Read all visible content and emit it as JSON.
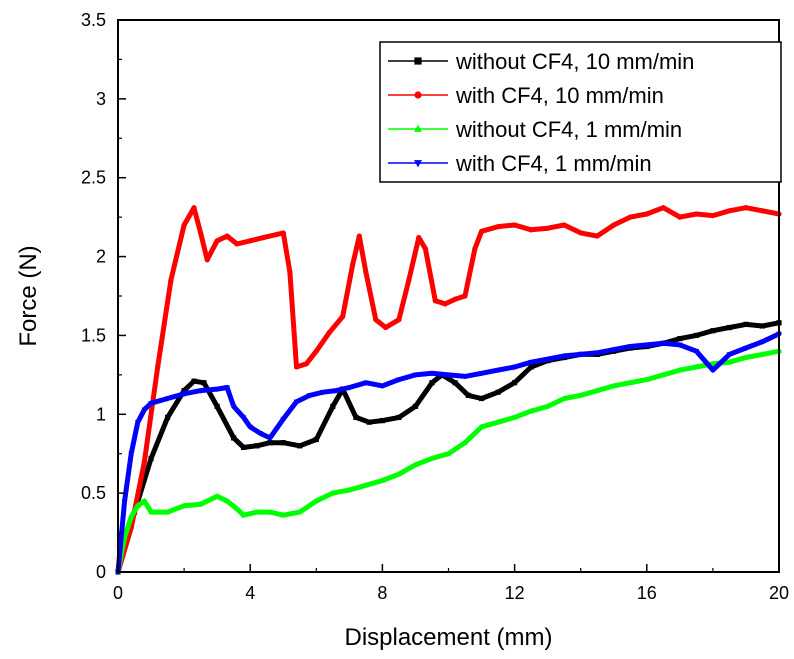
{
  "chart_data": {
    "type": "line",
    "xlabel": "Displacement (mm)",
    "ylabel": "Force (N)",
    "xlim": [
      0,
      20
    ],
    "ylim": [
      0,
      3.5
    ],
    "x_ticks": [
      0,
      4,
      8,
      12,
      16,
      20
    ],
    "x_tick_labels": [
      "0",
      "4",
      "8",
      "12",
      "16",
      "20"
    ],
    "y_ticks": [
      0,
      0.5,
      1,
      1.5,
      2,
      2.5,
      3,
      3.5
    ],
    "y_tick_labels": [
      "0",
      "0.5",
      "1",
      "1.5",
      "2",
      "2.5",
      "3",
      "3.5"
    ],
    "grid": false,
    "legend_position": "top-right",
    "series": [
      {
        "name": "without CF4, 10 mm/min",
        "color": "#000000",
        "marker": "square",
        "x": [
          0,
          0.5,
          1,
          1.5,
          2,
          2.3,
          2.6,
          3,
          3.5,
          3.8,
          4.2,
          4.6,
          5,
          5.5,
          6,
          6.5,
          6.8,
          7.2,
          7.6,
          8,
          8.5,
          9,
          9.5,
          9.8,
          10.2,
          10.6,
          11,
          11.5,
          12,
          12.5,
          13,
          13.5,
          14,
          14.5,
          15,
          15.5,
          16,
          16.5,
          17,
          17.5,
          18,
          18.5,
          19,
          19.5,
          20
        ],
        "values": [
          0,
          0.38,
          0.72,
          0.98,
          1.15,
          1.21,
          1.2,
          1.05,
          0.85,
          0.79,
          0.8,
          0.82,
          0.82,
          0.8,
          0.84,
          1.05,
          1.16,
          0.98,
          0.95,
          0.96,
          0.98,
          1.05,
          1.2,
          1.25,
          1.2,
          1.12,
          1.1,
          1.14,
          1.2,
          1.3,
          1.34,
          1.36,
          1.38,
          1.38,
          1.4,
          1.42,
          1.43,
          1.45,
          1.48,
          1.5,
          1.53,
          1.55,
          1.57,
          1.56,
          1.58
        ]
      },
      {
        "name": "with CF4, 10 mm/min",
        "color": "#ff0000",
        "marker": "circle",
        "x": [
          0,
          0.4,
          0.8,
          1.2,
          1.6,
          2.0,
          2.3,
          2.5,
          2.7,
          3.0,
          3.3,
          3.6,
          4.0,
          4.4,
          4.8,
          5.0,
          5.2,
          5.4,
          5.7,
          6.0,
          6.4,
          6.8,
          7.1,
          7.3,
          7.5,
          7.8,
          8.1,
          8.5,
          8.8,
          9.1,
          9.3,
          9.6,
          9.9,
          10.2,
          10.5,
          10.8,
          11.0,
          11.5,
          12.0,
          12.5,
          13.0,
          13.5,
          14.0,
          14.5,
          15.0,
          15.5,
          16.0,
          16.5,
          17.0,
          17.5,
          18.0,
          18.5,
          19.0,
          19.5,
          20.0
        ],
        "values": [
          0,
          0.28,
          0.7,
          1.3,
          1.85,
          2.2,
          2.31,
          2.15,
          1.98,
          2.1,
          2.13,
          2.08,
          2.1,
          2.12,
          2.14,
          2.15,
          1.9,
          1.3,
          1.32,
          1.4,
          1.52,
          1.62,
          1.95,
          2.13,
          1.9,
          1.6,
          1.55,
          1.6,
          1.85,
          2.12,
          2.05,
          1.72,
          1.7,
          1.73,
          1.75,
          2.05,
          2.16,
          2.19,
          2.2,
          2.17,
          2.18,
          2.2,
          2.15,
          2.13,
          2.2,
          2.25,
          2.27,
          2.31,
          2.25,
          2.27,
          2.26,
          2.29,
          2.31,
          2.29,
          2.27
        ]
      },
      {
        "name": "without CF4, 1 mm/min",
        "color": "#00ff00",
        "marker": "triangle-up",
        "x": [
          0,
          0.2,
          0.4,
          0.6,
          0.8,
          1.0,
          1.5,
          2.0,
          2.5,
          3.0,
          3.3,
          3.6,
          3.8,
          4.2,
          4.6,
          5.0,
          5.5,
          6.0,
          6.5,
          7.0,
          7.5,
          8.0,
          8.5,
          9.0,
          9.5,
          10.0,
          10.5,
          11.0,
          11.5,
          12.0,
          12.5,
          13.0,
          13.5,
          14.0,
          14.5,
          15.0,
          15.5,
          16.0,
          16.5,
          17.0,
          17.5,
          18.0,
          18.5,
          19.0,
          19.5,
          20.0
        ],
        "values": [
          0,
          0.22,
          0.35,
          0.42,
          0.45,
          0.38,
          0.38,
          0.42,
          0.43,
          0.48,
          0.45,
          0.4,
          0.36,
          0.38,
          0.38,
          0.36,
          0.38,
          0.45,
          0.5,
          0.52,
          0.55,
          0.58,
          0.62,
          0.68,
          0.72,
          0.75,
          0.82,
          0.92,
          0.95,
          0.98,
          1.02,
          1.05,
          1.1,
          1.12,
          1.15,
          1.18,
          1.2,
          1.22,
          1.25,
          1.28,
          1.3,
          1.32,
          1.33,
          1.36,
          1.38,
          1.4
        ]
      },
      {
        "name": "with CF4, 1 mm/min",
        "color": "#0000ff",
        "marker": "triangle-down",
        "x": [
          0,
          0.2,
          0.4,
          0.6,
          0.8,
          1.0,
          1.5,
          2.0,
          2.5,
          3.0,
          3.3,
          3.5,
          3.8,
          4.0,
          4.3,
          4.6,
          5.0,
          5.4,
          5.8,
          6.2,
          6.6,
          7.0,
          7.5,
          8.0,
          8.5,
          9.0,
          9.5,
          10.0,
          10.5,
          11.0,
          11.5,
          12.0,
          12.5,
          13.0,
          13.5,
          14.0,
          14.5,
          15.0,
          15.5,
          16.0,
          16.5,
          17.0,
          17.5,
          18.0,
          18.5,
          19.0,
          19.5,
          20.0
        ],
        "values": [
          0,
          0.45,
          0.75,
          0.95,
          1.03,
          1.07,
          1.1,
          1.13,
          1.15,
          1.16,
          1.17,
          1.05,
          0.98,
          0.92,
          0.88,
          0.85,
          0.97,
          1.08,
          1.12,
          1.14,
          1.15,
          1.17,
          1.2,
          1.18,
          1.22,
          1.25,
          1.26,
          1.25,
          1.24,
          1.26,
          1.28,
          1.3,
          1.33,
          1.35,
          1.37,
          1.38,
          1.39,
          1.41,
          1.43,
          1.44,
          1.45,
          1.44,
          1.4,
          1.28,
          1.38,
          1.42,
          1.46,
          1.51
        ]
      }
    ]
  }
}
